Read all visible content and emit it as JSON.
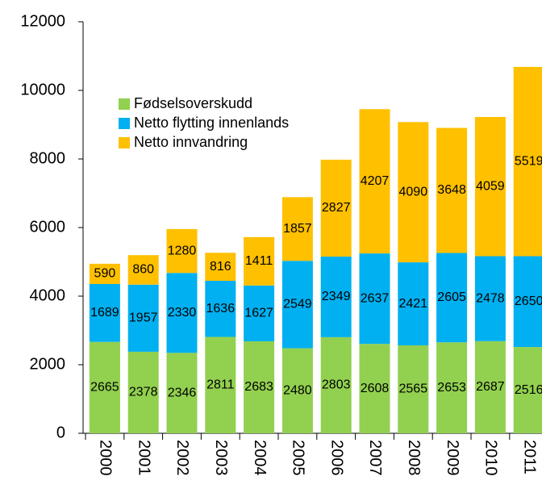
{
  "chart_data": {
    "type": "stacked_bar",
    "categories": [
      "2000",
      "2001",
      "2002",
      "2003",
      "2004",
      "2005",
      "2006",
      "2007",
      "2008",
      "2009",
      "2010",
      "2011"
    ],
    "series": [
      {
        "name": "Fødselsoverskudd",
        "color": "#92d050",
        "values": [
          2665,
          2378,
          2346,
          2811,
          2683,
          2480,
          2803,
          2608,
          2565,
          2653,
          2687,
          2516
        ]
      },
      {
        "name": "Netto flytting innenlands",
        "color": "#00b0f0",
        "values": [
          1689,
          1957,
          2330,
          1636,
          1627,
          2549,
          2349,
          2637,
          2421,
          2605,
          2478,
          2650
        ]
      },
      {
        "name": "Netto innvandring",
        "color": "#ffc000",
        "values": [
          590,
          860,
          1280,
          816,
          1411,
          1857,
          2827,
          4207,
          4090,
          3648,
          4059,
          5519
        ]
      }
    ],
    "ylim": [
      0,
      12000
    ],
    "yticks": [
      0,
      2000,
      4000,
      6000,
      8000,
      10000,
      12000
    ],
    "legend": "upper left"
  }
}
